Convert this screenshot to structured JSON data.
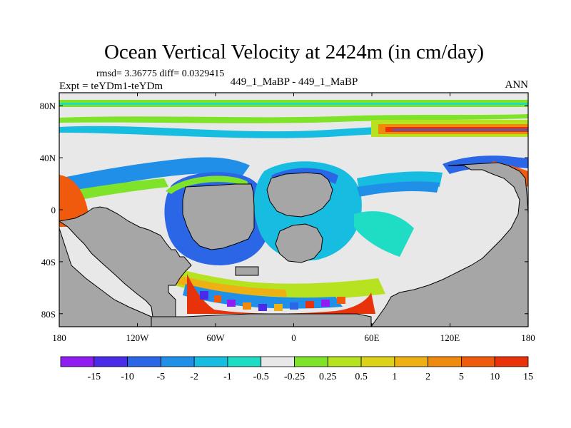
{
  "chart_data": {
    "type": "heatmap",
    "title": "Ocean Vertical Velocity at 2424m (in cm/day)",
    "stats_line": "rmsd= 3.36775 diff= 0.0329415",
    "left_label": "Expt = teYDm1-teYDm",
    "center_label": "449_1_MaBP - 449_1_MaBP",
    "right_label": "ANN",
    "projection": "cylindrical equidistant",
    "x_axis": {
      "range": [
        -180,
        180
      ],
      "ticks": [
        -180,
        -120,
        -60,
        0,
        60,
        120,
        180
      ],
      "tick_labels": [
        "180",
        "120W",
        "60W",
        "0",
        "60E",
        "120E",
        "180"
      ]
    },
    "y_axis": {
      "range": [
        -90,
        90
      ],
      "ticks": [
        80,
        40,
        0,
        -40,
        -80
      ],
      "tick_labels": [
        "80N",
        "40N",
        "0",
        "40S",
        "80S"
      ]
    },
    "colorbar": {
      "boundaries": [
        -15,
        -10,
        -5,
        -2,
        -1,
        -0.5,
        -0.25,
        0.25,
        0.5,
        1,
        2,
        5,
        10,
        15
      ],
      "labels": [
        "-15",
        "-10",
        "-5",
        "-2",
        "-1",
        "-0.5",
        "-0.25",
        "0.25",
        "0.5",
        "1",
        "2",
        "5",
        "10",
        "15"
      ],
      "colors": [
        "#8f1cf0",
        "#4a2ce8",
        "#2a66e6",
        "#1f8fe8",
        "#17bde0",
        "#1fdcc4",
        "#e8e8e8",
        "#7fe32a",
        "#b6e21f",
        "#dcd21a",
        "#eeb013",
        "#f08a0f",
        "#f05a0c",
        "#e8320a"
      ]
    },
    "land_color": "#a6a6a6",
    "coast_color": "#000000"
  }
}
